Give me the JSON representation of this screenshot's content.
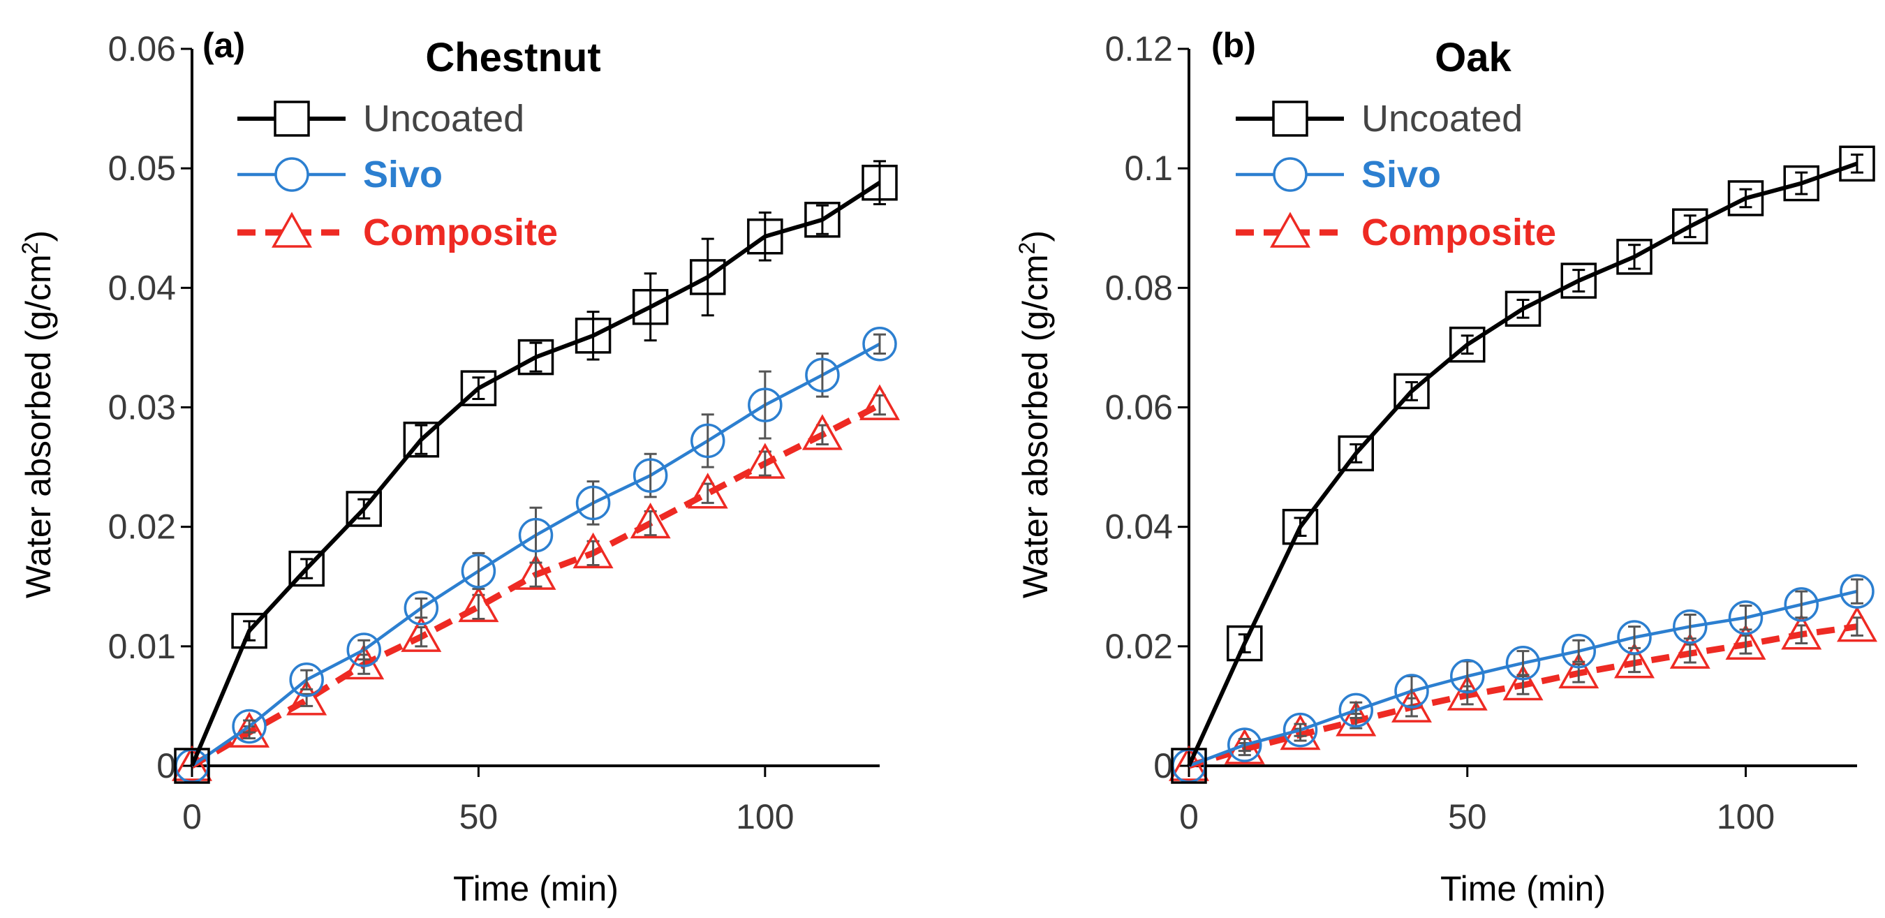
{
  "chart_data": [
    {
      "type": "line",
      "panel": "(a)",
      "title": "Chestnut",
      "xlabel": "Time (min)",
      "ylabel": "Water absorbed (g/cm",
      "ylabel_sup": "2",
      "ylabel_end": ")",
      "xlim": [
        0,
        120
      ],
      "ylim": [
        0,
        0.06
      ],
      "xticks": [
        0,
        50,
        100
      ],
      "xtick_labels": [
        "0",
        "50",
        "100"
      ],
      "yticks": [
        0,
        0.01,
        0.02,
        0.03,
        0.04,
        0.05,
        0.06
      ],
      "ytick_labels": [
        "0",
        "0.01",
        "0.02",
        "0.03",
        "0.04",
        "0.05",
        "0.06"
      ],
      "x": [
        0,
        10,
        20,
        30,
        40,
        50,
        60,
        70,
        80,
        90,
        100,
        110,
        120
      ],
      "series": [
        {
          "name": "Uncoated",
          "marker": "square",
          "color": "#000000",
          "dash": false,
          "values": [
            0,
            0.0113,
            0.0165,
            0.0215,
            0.0273,
            0.0316,
            0.0342,
            0.036,
            0.0384,
            0.0409,
            0.0443,
            0.0457,
            0.0488
          ],
          "errors": [
            0,
            0.0008,
            0.0008,
            0.0008,
            0.0012,
            0.0009,
            0.0012,
            0.002,
            0.0028,
            0.0032,
            0.002,
            0.0012,
            0.0018
          ]
        },
        {
          "name": "Sivo",
          "marker": "circle",
          "color": "#2c7fd0",
          "dash": false,
          "values": [
            0,
            0.0033,
            0.0072,
            0.0097,
            0.0132,
            0.0163,
            0.0193,
            0.022,
            0.0243,
            0.0272,
            0.0302,
            0.0327,
            0.0353
          ],
          "errors": [
            0,
            0.0005,
            0.0008,
            0.0008,
            0.0008,
            0.0015,
            0.0023,
            0.0018,
            0.0018,
            0.0022,
            0.0028,
            0.0018,
            0.0008
          ]
        },
        {
          "name": "Composite",
          "marker": "triangle",
          "color": "#ee2a23",
          "dash": true,
          "values": [
            0,
            0.0028,
            0.0055,
            0.0085,
            0.0108,
            0.0133,
            0.016,
            0.0178,
            0.0203,
            0.0228,
            0.0253,
            0.0277,
            0.0302
          ],
          "errors": [
            0,
            0.0005,
            0.0005,
            0.0008,
            0.0008,
            0.001,
            0.001,
            0.001,
            0.001,
            0.0008,
            0.001,
            0.0008,
            0.0008
          ]
        }
      ]
    },
    {
      "type": "line",
      "panel": "(b)",
      "title": "Oak",
      "xlabel": "Time (min)",
      "ylabel": "Water absorbed (g/cm",
      "ylabel_sup": "2",
      "ylabel_end": ")",
      "xlim": [
        0,
        120
      ],
      "ylim": [
        0,
        0.12
      ],
      "xticks": [
        0,
        50,
        100
      ],
      "xtick_labels": [
        "0",
        "50",
        "100"
      ],
      "yticks": [
        0,
        0.02,
        0.04,
        0.06,
        0.08,
        0.1,
        0.12
      ],
      "ytick_labels": [
        "0",
        "0.02",
        "0.04",
        "0.06",
        "0.08",
        "0.1",
        "0.12"
      ],
      "x": [
        0,
        10,
        20,
        30,
        40,
        50,
        60,
        70,
        80,
        90,
        100,
        110,
        120
      ],
      "series": [
        {
          "name": "Uncoated",
          "marker": "square",
          "color": "#000000",
          "dash": false,
          "values": [
            0,
            0.0205,
            0.04,
            0.0523,
            0.0627,
            0.0705,
            0.0765,
            0.0812,
            0.0852,
            0.0903,
            0.095,
            0.0975,
            0.1008
          ],
          "errors": [
            0,
            0.0015,
            0.0015,
            0.0015,
            0.0015,
            0.0015,
            0.0015,
            0.0018,
            0.002,
            0.0018,
            0.0015,
            0.0018,
            0.0015
          ]
        },
        {
          "name": "Sivo",
          "marker": "circle",
          "color": "#2c7fd0",
          "dash": false,
          "values": [
            0,
            0.0035,
            0.006,
            0.0093,
            0.0125,
            0.015,
            0.0172,
            0.0192,
            0.0215,
            0.0233,
            0.0248,
            0.027,
            0.0292
          ],
          "errors": [
            0,
            0.001,
            0.001,
            0.0013,
            0.0025,
            0.0025,
            0.002,
            0.0018,
            0.0018,
            0.002,
            0.002,
            0.0022,
            0.002
          ]
        },
        {
          "name": "Composite",
          "marker": "triangle",
          "color": "#ee2a23",
          "dash": true,
          "values": [
            0,
            0.0028,
            0.0052,
            0.0075,
            0.0098,
            0.0118,
            0.0135,
            0.0155,
            0.0172,
            0.0188,
            0.0203,
            0.022,
            0.0233
          ],
          "errors": [
            0,
            0.001,
            0.001,
            0.0012,
            0.0015,
            0.0015,
            0.0015,
            0.0015,
            0.0015,
            0.0015,
            0.0015,
            0.0015,
            0.0015
          ]
        }
      ]
    }
  ]
}
